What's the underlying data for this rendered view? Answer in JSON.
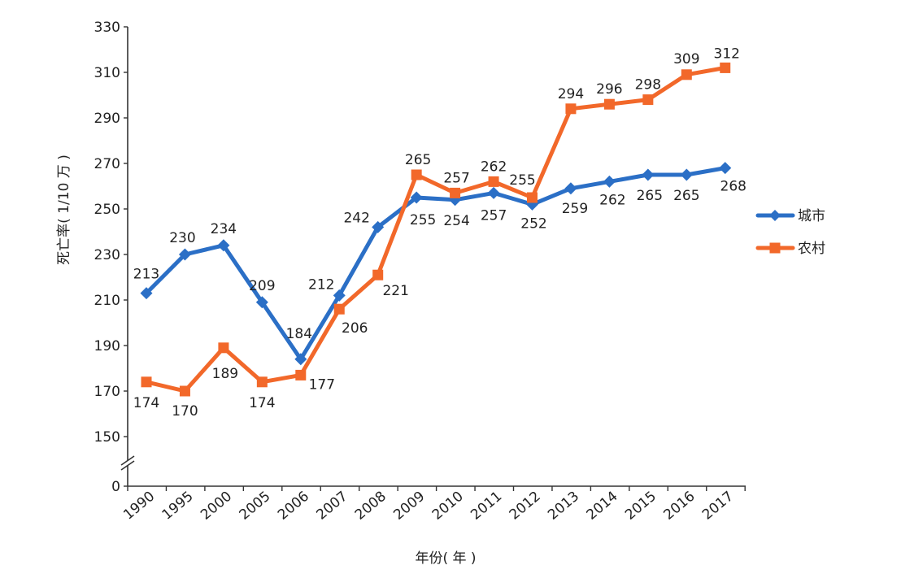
{
  "chart_data": {
    "type": "line",
    "title": "",
    "xlabel": "年份( 年 )",
    "ylabel": "死亡率( 1/10 万 )",
    "categories": [
      "1990",
      "1995",
      "2000",
      "2005",
      "2006",
      "2007",
      "2008",
      "2009",
      "2010",
      "2011",
      "2012",
      "2013",
      "2014",
      "2015",
      "2016",
      "2017"
    ],
    "yticks": [
      0,
      150,
      170,
      190,
      210,
      230,
      250,
      270,
      290,
      310,
      330
    ],
    "ylim": [
      150,
      330
    ],
    "y_axis_break": true,
    "grid": false,
    "legend_position": "right",
    "series": [
      {
        "name": "城市",
        "color": "#2B6FC6",
        "marker": "diamond",
        "values": [
          213,
          230,
          234,
          209,
          184,
          212,
          242,
          255,
          254,
          257,
          252,
          259,
          262,
          265,
          265,
          268
        ]
      },
      {
        "name": "农村",
        "color": "#F2682A",
        "marker": "square",
        "values": [
          174,
          170,
          189,
          174,
          177,
          206,
          221,
          265,
          257,
          262,
          255,
          294,
          296,
          298,
          309,
          312
        ]
      }
    ]
  }
}
